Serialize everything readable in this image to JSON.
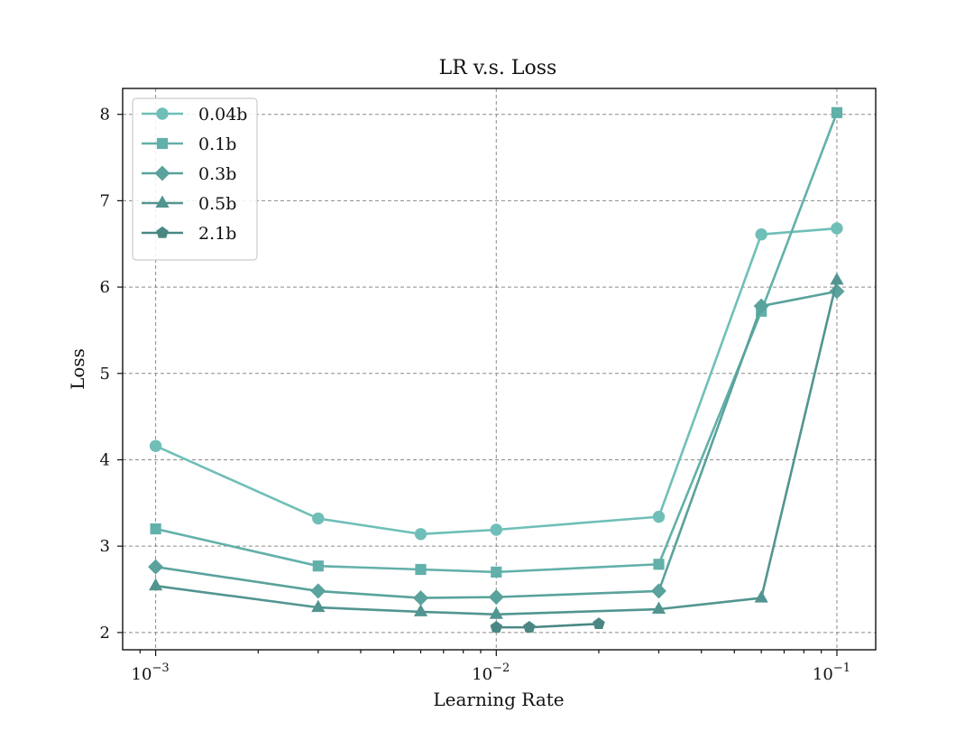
{
  "chart_data": {
    "type": "line",
    "title": "LR v.s. Loss",
    "xlabel": "Learning Rate",
    "ylabel": "Loss",
    "xscale": "log",
    "xlim": [
      0.0008,
      0.13
    ],
    "ylim": [
      1.8,
      8.3
    ],
    "xticks": [
      {
        "value": 0.001,
        "base": "10",
        "exp": "−3"
      },
      {
        "value": 0.01,
        "base": "10",
        "exp": "−2"
      },
      {
        "value": 0.1,
        "base": "10",
        "exp": "−1"
      }
    ],
    "yticks": [
      2,
      3,
      4,
      5,
      6,
      7,
      8
    ],
    "grid": true,
    "legend_position": "top-left",
    "series": [
      {
        "name": "0.04b",
        "marker": "circle",
        "color": "#6fbfb8",
        "x": [
          0.001,
          0.003,
          0.006,
          0.01,
          0.03,
          0.06,
          0.1
        ],
        "y": [
          4.16,
          3.32,
          3.14,
          3.19,
          3.34,
          6.61,
          6.68
        ]
      },
      {
        "name": "0.1b",
        "marker": "square",
        "color": "#62b0aa",
        "x": [
          0.001,
          0.003,
          0.006,
          0.01,
          0.03,
          0.06,
          0.1
        ],
        "y": [
          3.2,
          2.77,
          2.73,
          2.7,
          2.79,
          5.72,
          8.02
        ]
      },
      {
        "name": "0.3b",
        "marker": "diamond",
        "color": "#5aa29c",
        "x": [
          0.001,
          0.003,
          0.006,
          0.01,
          0.03,
          0.06,
          0.1
        ],
        "y": [
          2.76,
          2.48,
          2.4,
          2.41,
          2.48,
          5.78,
          5.95
        ]
      },
      {
        "name": "0.5b",
        "marker": "triangle",
        "color": "#529590",
        "x": [
          0.001,
          0.003,
          0.006,
          0.01,
          0.03,
          0.06,
          0.1
        ],
        "y": [
          2.54,
          2.29,
          2.24,
          2.21,
          2.27,
          2.4,
          6.08
        ]
      },
      {
        "name": "2.1b",
        "marker": "pentagon",
        "color": "#4a8783",
        "x": [
          0.01,
          0.0125,
          0.02
        ],
        "y": [
          2.06,
          2.06,
          2.1
        ]
      }
    ]
  }
}
